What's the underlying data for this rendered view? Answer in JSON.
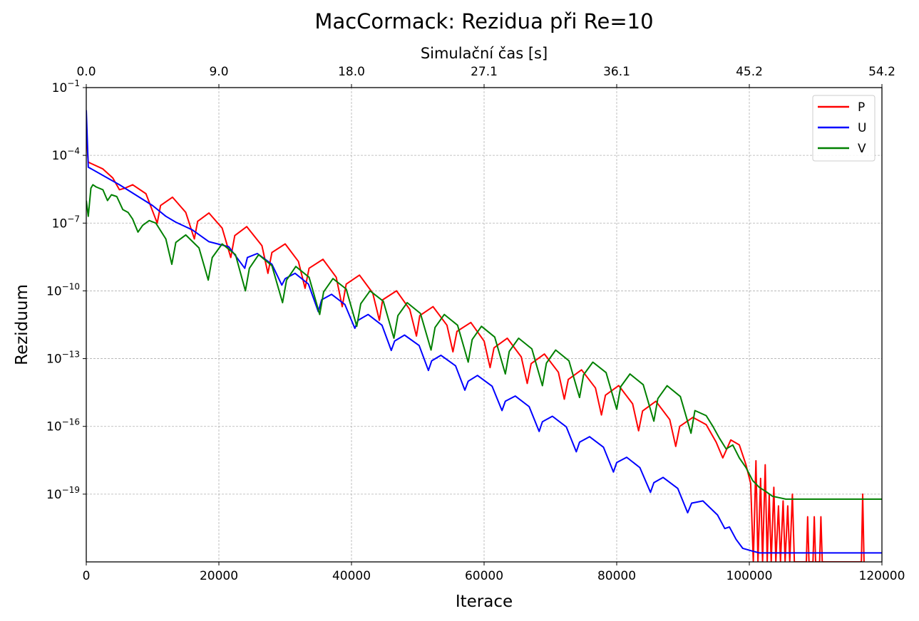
{
  "chart_data": {
    "type": "line",
    "title": "MacCormack: Rezidua při Re=10",
    "xlabel": "Iterace",
    "ylabel": "Reziduum",
    "top_xlabel": "Simulační čas [s]",
    "xlim": [
      0,
      120000
    ],
    "ylim": [
      1e-22,
      0.1
    ],
    "yscale": "log",
    "grid": true,
    "legend_position": "top-right",
    "x_ticks": [
      {
        "value": 0,
        "label": "0"
      },
      {
        "value": 20000,
        "label": "20000"
      },
      {
        "value": 40000,
        "label": "40000"
      },
      {
        "value": 60000,
        "label": "60000"
      },
      {
        "value": 80000,
        "label": "80000"
      },
      {
        "value": 100000,
        "label": "100000"
      },
      {
        "value": 120000,
        "label": "120000"
      }
    ],
    "top_ticks": [
      {
        "value": 0,
        "label": "0.0"
      },
      {
        "value": 20000,
        "label": "9.0"
      },
      {
        "value": 40000,
        "label": "18.0"
      },
      {
        "value": 60000,
        "label": "27.1"
      },
      {
        "value": 80000,
        "label": "36.1"
      },
      {
        "value": 100000,
        "label": "45.2"
      },
      {
        "value": 120000,
        "label": "54.2"
      }
    ],
    "y_ticks": [
      {
        "exp": -1,
        "base": "10",
        "sup": "−1"
      },
      {
        "exp": -4,
        "base": "10",
        "sup": "−4"
      },
      {
        "exp": -7,
        "base": "10",
        "sup": "−7"
      },
      {
        "exp": -10,
        "base": "10",
        "sup": "−10"
      },
      {
        "exp": -13,
        "base": "10",
        "sup": "−13"
      },
      {
        "exp": -16,
        "base": "10",
        "sup": "−16"
      },
      {
        "exp": -19,
        "base": "10",
        "sup": "−19"
      }
    ],
    "series": [
      {
        "name": "P",
        "color": "#ff0000",
        "points": [
          [
            0,
            0.001
          ],
          [
            300,
            5e-05
          ],
          [
            2500,
            2.5e-05
          ],
          [
            4000,
            1e-05
          ],
          [
            5000,
            3e-06
          ],
          [
            5800,
            3.5e-06
          ],
          [
            7000,
            5e-06
          ],
          [
            9000,
            2e-06
          ],
          [
            10700,
            1e-07
          ],
          [
            11200,
            6e-07
          ],
          [
            13000,
            1.4e-06
          ],
          [
            15000,
            3e-07
          ],
          [
            16300,
            2e-08
          ],
          [
            16800,
            1.2e-07
          ],
          [
            18500,
            2.8e-07
          ],
          [
            20500,
            6e-08
          ],
          [
            21800,
            3e-09
          ],
          [
            22400,
            2.8e-08
          ],
          [
            24200,
            7e-08
          ],
          [
            26500,
            1e-08
          ],
          [
            27400,
            6e-10
          ],
          [
            28000,
            5e-09
          ],
          [
            30000,
            1.2e-08
          ],
          [
            32000,
            2e-09
          ],
          [
            33000,
            1.3e-10
          ],
          [
            33600,
            1e-09
          ],
          [
            35700,
            2.5e-09
          ],
          [
            37700,
            4e-10
          ],
          [
            38600,
            2e-11
          ],
          [
            39200,
            2e-10
          ],
          [
            41200,
            5e-10
          ],
          [
            43200,
            8e-11
          ],
          [
            44200,
            5e-12
          ],
          [
            44700,
            4e-11
          ],
          [
            46800,
            1e-10
          ],
          [
            48800,
            1.5e-11
          ],
          [
            49800,
            1e-12
          ],
          [
            50300,
            8e-12
          ],
          [
            52300,
            2e-11
          ],
          [
            54400,
            3e-12
          ],
          [
            55300,
            2e-13
          ],
          [
            55900,
            1.6e-12
          ],
          [
            58000,
            4e-12
          ],
          [
            60000,
            6e-13
          ],
          [
            60900,
            4e-14
          ],
          [
            61500,
            3e-13
          ],
          [
            63500,
            8e-13
          ],
          [
            65600,
            1.2e-13
          ],
          [
            66500,
            8e-15
          ],
          [
            67100,
            6e-14
          ],
          [
            69100,
            1.6e-13
          ],
          [
            71200,
            2.5e-14
          ],
          [
            72100,
            1.6e-15
          ],
          [
            72700,
            1.2e-14
          ],
          [
            74700,
            3.2e-14
          ],
          [
            76800,
            5e-15
          ],
          [
            77700,
            3.2e-16
          ],
          [
            78300,
            2.4e-15
          ],
          [
            80300,
            6.4e-15
          ],
          [
            82400,
            1e-15
          ],
          [
            83300,
            6.4e-17
          ],
          [
            83900,
            4.8e-16
          ],
          [
            85900,
            1.3e-15
          ],
          [
            88000,
            2e-16
          ],
          [
            88900,
            1.3e-17
          ],
          [
            89500,
            1e-16
          ],
          [
            91500,
            2.5e-16
          ],
          [
            93500,
            1.2e-16
          ],
          [
            95000,
            2e-17
          ],
          [
            96000,
            4e-18
          ],
          [
            97200,
            2.5e-17
          ],
          [
            98500,
            1.5e-17
          ],
          [
            99500,
            2e-18
          ],
          [
            100200,
            3e-19
          ],
          [
            100600,
            1e-22
          ],
          [
            101000,
            3e-18
          ],
          [
            101300,
            1e-22
          ],
          [
            101700,
            5e-19
          ],
          [
            102000,
            1e-22
          ],
          [
            102400,
            2e-18
          ],
          [
            102700,
            1e-22
          ],
          [
            103000,
            1e-19
          ],
          [
            103300,
            1e-22
          ],
          [
            103700,
            2e-19
          ],
          [
            104000,
            1e-22
          ],
          [
            104400,
            3e-20
          ],
          [
            104700,
            1e-22
          ],
          [
            105100,
            5e-20
          ],
          [
            105400,
            1e-22
          ],
          [
            105800,
            3e-20
          ],
          [
            106100,
            1e-22
          ],
          [
            106500,
            1e-19
          ],
          [
            106800,
            1e-22
          ],
          [
            107200,
            1e-22
          ],
          [
            108600,
            1e-22
          ],
          [
            108800,
            1e-20
          ],
          [
            109000,
            1e-22
          ],
          [
            109600,
            1e-22
          ],
          [
            109800,
            1e-20
          ],
          [
            110000,
            1e-22
          ],
          [
            110600,
            1e-22
          ],
          [
            110800,
            1e-20
          ],
          [
            111000,
            1e-22
          ],
          [
            116900,
            1e-22
          ],
          [
            117100,
            1e-19
          ],
          [
            117300,
            1e-22
          ]
        ]
      },
      {
        "name": "U",
        "color": "#0000ff",
        "points": [
          [
            0,
            0.01
          ],
          [
            300,
            3e-05
          ],
          [
            5000,
            5e-06
          ],
          [
            10000,
            6e-07
          ],
          [
            12000,
            2e-07
          ],
          [
            13500,
            1.1e-07
          ],
          [
            16000,
            5e-08
          ],
          [
            18500,
            1.5e-08
          ],
          [
            21500,
            9e-09
          ],
          [
            23900,
            1e-09
          ],
          [
            24300,
            3e-09
          ],
          [
            25800,
            4.5e-09
          ],
          [
            28000,
            1.5e-09
          ],
          [
            29500,
            1.8e-10
          ],
          [
            30000,
            3.5e-10
          ],
          [
            31500,
            6e-10
          ],
          [
            33500,
            2e-10
          ],
          [
            35000,
            1.2e-11
          ],
          [
            35500,
            4e-11
          ],
          [
            37000,
            7e-11
          ],
          [
            39000,
            2.5e-11
          ],
          [
            40500,
            2.2e-12
          ],
          [
            41000,
            5e-12
          ],
          [
            42500,
            9e-12
          ],
          [
            44600,
            3e-12
          ],
          [
            46000,
            2.3e-13
          ],
          [
            46500,
            6e-13
          ],
          [
            48000,
            1.1e-12
          ],
          [
            50200,
            3.8e-13
          ],
          [
            51600,
            3e-14
          ],
          [
            52100,
            8e-14
          ],
          [
            53500,
            1.4e-13
          ],
          [
            55700,
            4.8e-14
          ],
          [
            57100,
            4e-15
          ],
          [
            57600,
            1e-14
          ],
          [
            59000,
            1.8e-14
          ],
          [
            61200,
            6e-15
          ],
          [
            62700,
            5e-16
          ],
          [
            63200,
            1.3e-15
          ],
          [
            64700,
            2.2e-15
          ],
          [
            66800,
            7.5e-16
          ],
          [
            68300,
            6e-17
          ],
          [
            68800,
            1.6e-16
          ],
          [
            70300,
            2.8e-16
          ],
          [
            72400,
            9.5e-17
          ],
          [
            73900,
            7.5e-18
          ],
          [
            74400,
            2e-17
          ],
          [
            75900,
            3.5e-17
          ],
          [
            78000,
            1.2e-17
          ],
          [
            79500,
            9.5e-19
          ],
          [
            80000,
            2.5e-18
          ],
          [
            81500,
            4.3e-18
          ],
          [
            83500,
            1.5e-18
          ],
          [
            85100,
            1.2e-19
          ],
          [
            85600,
            3.2e-19
          ],
          [
            87000,
            5.5e-19
          ],
          [
            89200,
            1.8e-19
          ],
          [
            90700,
            1.5e-20
          ],
          [
            91300,
            4e-20
          ],
          [
            93000,
            5e-20
          ],
          [
            95200,
            1.2e-20
          ],
          [
            96300,
            3e-21
          ],
          [
            97000,
            3.5e-21
          ],
          [
            98000,
            1e-21
          ],
          [
            99000,
            4e-22
          ],
          [
            100500,
            3e-22
          ],
          [
            101500,
            2.5e-22
          ],
          [
            102500,
            2.5e-22
          ],
          [
            120000,
            2.5e-22
          ]
        ]
      },
      {
        "name": "V",
        "color": "#008000",
        "points": [
          [
            0,
            1e-06
          ],
          [
            300,
            2e-07
          ],
          [
            700,
            3.5e-06
          ],
          [
            1000,
            5e-06
          ],
          [
            1500,
            4e-06
          ],
          [
            2500,
            3e-06
          ],
          [
            3200,
            1e-06
          ],
          [
            3800,
            1.8e-06
          ],
          [
            4600,
            1.5e-06
          ],
          [
            5500,
            4e-07
          ],
          [
            6300,
            3e-07
          ],
          [
            7000,
            1.5e-07
          ],
          [
            7800,
            4e-08
          ],
          [
            8500,
            8e-08
          ],
          [
            9500,
            1.3e-07
          ],
          [
            10500,
            1e-07
          ],
          [
            12000,
            2e-08
          ],
          [
            12900,
            1.5e-09
          ],
          [
            13500,
            1.4e-08
          ],
          [
            15000,
            3e-08
          ],
          [
            17000,
            8e-09
          ],
          [
            18400,
            3e-10
          ],
          [
            19000,
            3e-09
          ],
          [
            20500,
            1.2e-08
          ],
          [
            22500,
            4e-09
          ],
          [
            24000,
            1e-10
          ],
          [
            24600,
            1e-09
          ],
          [
            26000,
            4e-09
          ],
          [
            28000,
            1.3e-09
          ],
          [
            29600,
            3e-11
          ],
          [
            30200,
            3e-10
          ],
          [
            31600,
            1.2e-09
          ],
          [
            33600,
            4e-10
          ],
          [
            35200,
            9e-12
          ],
          [
            35800,
            9e-11
          ],
          [
            37200,
            3.5e-10
          ],
          [
            39200,
            1.2e-10
          ],
          [
            40800,
            2.7e-12
          ],
          [
            41400,
            2.7e-11
          ],
          [
            42800,
            1e-10
          ],
          [
            44800,
            3.5e-11
          ],
          [
            46400,
            8e-13
          ],
          [
            47000,
            8e-12
          ],
          [
            48400,
            3e-11
          ],
          [
            50400,
            1e-11
          ],
          [
            52000,
            2.4e-13
          ],
          [
            52600,
            2.4e-12
          ],
          [
            54000,
            9e-12
          ],
          [
            56000,
            3e-12
          ],
          [
            57600,
            7e-14
          ],
          [
            58200,
            7e-13
          ],
          [
            59600,
            2.7e-12
          ],
          [
            61600,
            9e-13
          ],
          [
            63200,
            2.1e-14
          ],
          [
            63800,
            2.1e-13
          ],
          [
            65200,
            8e-13
          ],
          [
            67200,
            2.7e-13
          ],
          [
            68800,
            6.3e-15
          ],
          [
            69400,
            6.3e-14
          ],
          [
            70800,
            2.4e-13
          ],
          [
            72800,
            8e-14
          ],
          [
            74400,
            1.9e-15
          ],
          [
            75000,
            1.9e-14
          ],
          [
            76400,
            7e-14
          ],
          [
            78400,
            2.4e-14
          ],
          [
            80000,
            5.7e-16
          ],
          [
            80600,
            5.7e-15
          ],
          [
            82000,
            2.1e-14
          ],
          [
            84000,
            7e-15
          ],
          [
            85600,
            1.7e-16
          ],
          [
            86200,
            1.7e-15
          ],
          [
            87600,
            6.3e-15
          ],
          [
            89600,
            2.1e-15
          ],
          [
            91200,
            5e-17
          ],
          [
            91800,
            5e-16
          ],
          [
            93500,
            3e-16
          ],
          [
            94500,
            1e-16
          ],
          [
            95500,
            3e-17
          ],
          [
            96500,
            1e-17
          ],
          [
            97500,
            1.5e-17
          ],
          [
            98500,
            4e-18
          ],
          [
            99500,
            1.5e-18
          ],
          [
            100500,
            4e-19
          ],
          [
            101500,
            2e-19
          ],
          [
            102500,
            1.3e-19
          ],
          [
            103500,
            8e-20
          ],
          [
            104500,
            7e-20
          ],
          [
            105500,
            6e-20
          ],
          [
            120000,
            6e-20
          ]
        ]
      }
    ]
  }
}
